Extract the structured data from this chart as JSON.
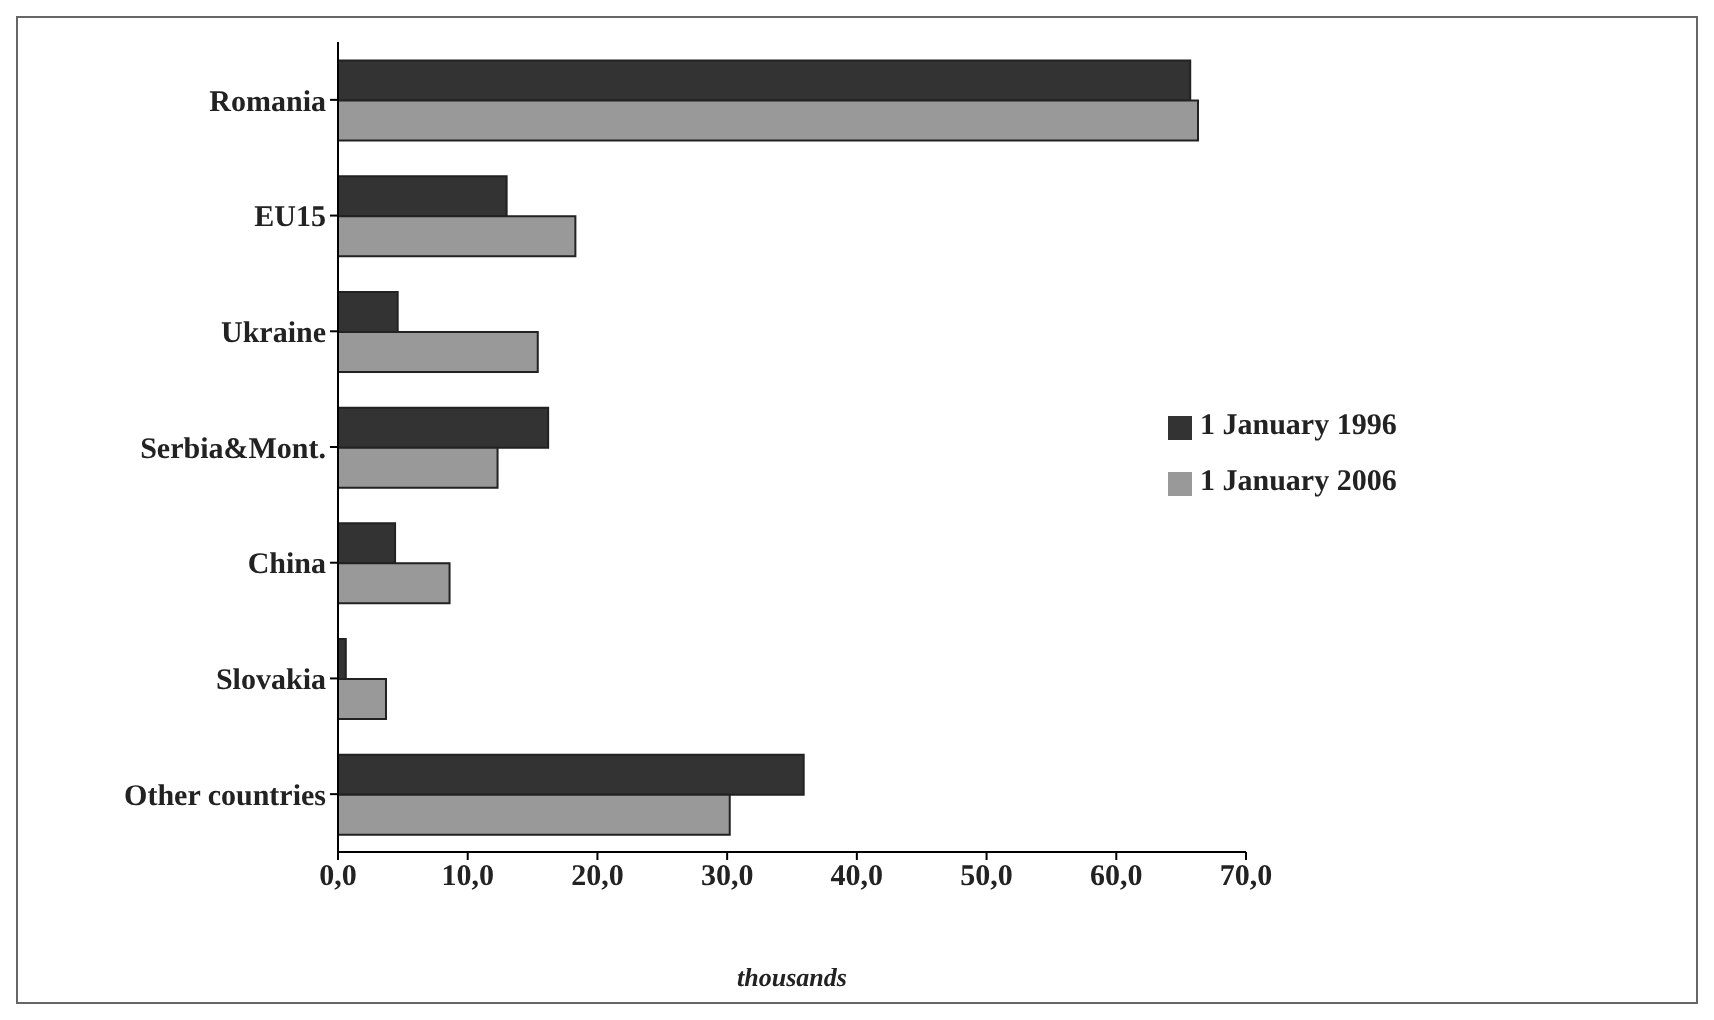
{
  "chart_data": {
    "type": "bar",
    "orientation": "horizontal",
    "xlabel": "thousands",
    "categories": [
      "Romania",
      "EU15",
      "Ukraine",
      "Serbia&Mont.",
      "China",
      "Slovakia",
      "Other countries"
    ],
    "series": [
      {
        "name": "1 January 1996",
        "color": "#333333",
        "values": [
          65.7,
          13.0,
          4.6,
          16.2,
          4.4,
          0.6,
          35.9
        ]
      },
      {
        "name": "1 January 2006",
        "color": "#999999",
        "values": [
          66.3,
          18.3,
          15.4,
          12.3,
          8.6,
          3.7,
          30.2
        ]
      }
    ],
    "xlim": [
      0,
      70
    ],
    "xticks": [
      {
        "value": 0,
        "label": "0,0"
      },
      {
        "value": 10,
        "label": "10,0"
      },
      {
        "value": 20,
        "label": "20,0"
      },
      {
        "value": 30,
        "label": "30,0"
      },
      {
        "value": 40,
        "label": "40,0"
      },
      {
        "value": 50,
        "label": "50,0"
      },
      {
        "value": 60,
        "label": "60,0"
      },
      {
        "value": 70,
        "label": "70,0"
      }
    ],
    "grid": false,
    "legend": "right"
  }
}
